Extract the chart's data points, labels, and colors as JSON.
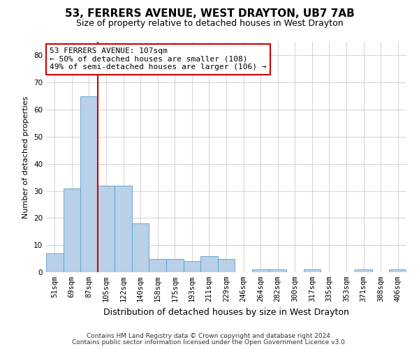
{
  "title": "53, FERRERS AVENUE, WEST DRAYTON, UB7 7AB",
  "subtitle": "Size of property relative to detached houses in West Drayton",
  "xlabel": "Distribution of detached houses by size in West Drayton",
  "ylabel": "Number of detached properties",
  "footnote1": "Contains HM Land Registry data © Crown copyright and database right 2024.",
  "footnote2": "Contains public sector information licensed under the Open Government Licence v3.0.",
  "annotation_line1": "53 FERRERS AVENUE: 107sqm",
  "annotation_line2": "← 50% of detached houses are smaller (108)",
  "annotation_line3": "49% of semi-detached houses are larger (106) →",
  "bar_color": "#b8d0e8",
  "bar_edge_color": "#5a9dc8",
  "vline_color": "#cc0000",
  "annotation_box_edge": "#cc0000",
  "grid_color": "#cccccc",
  "background_color": "#ffffff",
  "categories": [
    "51sqm",
    "69sqm",
    "87sqm",
    "105sqm",
    "122sqm",
    "140sqm",
    "158sqm",
    "175sqm",
    "193sqm",
    "211sqm",
    "229sqm",
    "246sqm",
    "264sqm",
    "282sqm",
    "300sqm",
    "317sqm",
    "335sqm",
    "353sqm",
    "371sqm",
    "388sqm",
    "406sqm"
  ],
  "values": [
    7,
    31,
    65,
    32,
    32,
    18,
    5,
    5,
    4,
    6,
    5,
    0,
    1,
    1,
    0,
    1,
    0,
    0,
    1,
    0,
    1
  ],
  "vline_x": 3.0,
  "ylim": [
    0,
    85
  ],
  "yticks": [
    0,
    10,
    20,
    30,
    40,
    50,
    60,
    70,
    80
  ],
  "title_fontsize": 11,
  "subtitle_fontsize": 9,
  "xlabel_fontsize": 9,
  "ylabel_fontsize": 8,
  "tick_fontsize": 7.5,
  "annotation_fontsize": 8,
  "footnote_fontsize": 6.5
}
